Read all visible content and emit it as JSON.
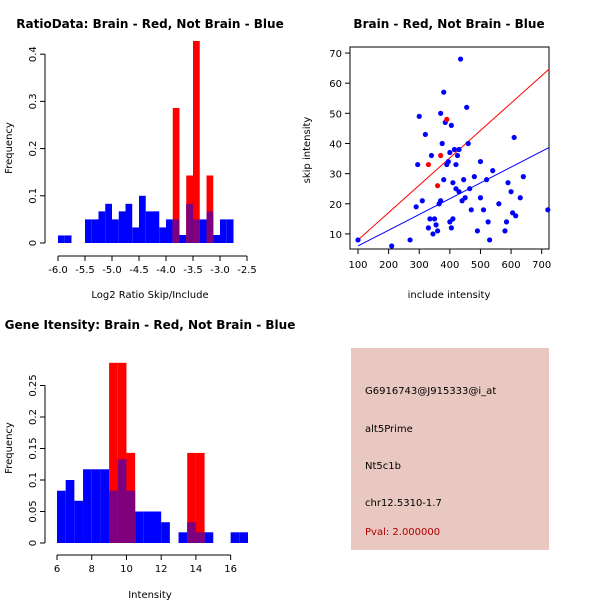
{
  "colors": {
    "brain": "#ff0000",
    "not_brain": "#0000ff",
    "overlap": "#7f007f",
    "info_bg": "#e8c8c0",
    "pval": "#b00000"
  },
  "chart_data": [
    {
      "type": "histogram",
      "title": "RatioData: Brain - Red, Not Brain - Blue",
      "xlabel": "Log2 Ratio Skip/Include",
      "ylabel": "Frequency",
      "xlim": [
        -6.0,
        -2.5
      ],
      "ylim": [
        0,
        0.43
      ],
      "xticks": [
        -6.0,
        -5.5,
        -5.0,
        -4.5,
        -4.0,
        -3.5,
        -3.0,
        -2.5
      ],
      "yticks": [
        0,
        0.1,
        0.2,
        0.3,
        0.4
      ],
      "bin_width": 0.125,
      "series": [
        {
          "name": "Not Brain",
          "color": "blue",
          "bins": [
            [
              -6.0,
              0.016
            ],
            [
              -5.875,
              0.016
            ],
            [
              -5.5,
              0.05
            ],
            [
              -5.375,
              0.05
            ],
            [
              -5.25,
              0.067
            ],
            [
              -5.125,
              0.083
            ],
            [
              -5.0,
              0.05
            ],
            [
              -4.875,
              0.067
            ],
            [
              -4.75,
              0.083
            ],
            [
              -4.625,
              0.033
            ],
            [
              -4.5,
              0.1
            ],
            [
              -4.375,
              0.067
            ],
            [
              -4.25,
              0.067
            ],
            [
              -4.125,
              0.033
            ],
            [
              -4.0,
              0.05
            ],
            [
              -3.875,
              0.05
            ],
            [
              -3.75,
              0.017
            ],
            [
              -3.625,
              0.083
            ],
            [
              -3.5,
              0.05
            ],
            [
              -3.375,
              0.05
            ],
            [
              -3.25,
              0.067
            ],
            [
              -3.125,
              0.017
            ],
            [
              -3.0,
              0.05
            ],
            [
              -2.875,
              0.05
            ]
          ]
        },
        {
          "name": "Brain",
          "color": "red",
          "bins": [
            [
              -3.875,
              0.286
            ],
            [
              -3.625,
              0.143
            ],
            [
              -3.5,
              0.428
            ],
            [
              -3.25,
              0.143
            ]
          ]
        }
      ]
    },
    {
      "type": "scatter",
      "title": "Brain - Red, Not Brain - Blue",
      "xlabel": "include intensity",
      "ylabel": "skip intensity",
      "xlim": [
        100,
        750
      ],
      "ylim": [
        5,
        72
      ],
      "xticks": [
        100,
        200,
        300,
        400,
        500,
        600,
        700
      ],
      "yticks": [
        10,
        20,
        30,
        40,
        50,
        60,
        70
      ],
      "series": [
        {
          "name": "Not Brain",
          "color": "blue",
          "points": [
            [
              100,
              8
            ],
            [
              210,
              6
            ],
            [
              270,
              8
            ],
            [
              290,
              19
            ],
            [
              295,
              33
            ],
            [
              300,
              49
            ],
            [
              310,
              21
            ],
            [
              320,
              43
            ],
            [
              330,
              12
            ],
            [
              335,
              15
            ],
            [
              340,
              36
            ],
            [
              345,
              10
            ],
            [
              350,
              15
            ],
            [
              355,
              13
            ],
            [
              360,
              11
            ],
            [
              365,
              20
            ],
            [
              370,
              21
            ],
            [
              370,
              50
            ],
            [
              375,
              40
            ],
            [
              380,
              57
            ],
            [
              380,
              28
            ],
            [
              385,
              47
            ],
            [
              390,
              33
            ],
            [
              395,
              34
            ],
            [
              400,
              37
            ],
            [
              400,
              14
            ],
            [
              405,
              46
            ],
            [
              405,
              12
            ],
            [
              410,
              15
            ],
            [
              410,
              27
            ],
            [
              415,
              38
            ],
            [
              420,
              33
            ],
            [
              420,
              25
            ],
            [
              425,
              36
            ],
            [
              430,
              38
            ],
            [
              430,
              24
            ],
            [
              435,
              68
            ],
            [
              440,
              21
            ],
            [
              445,
              28
            ],
            [
              450,
              22
            ],
            [
              455,
              52
            ],
            [
              460,
              40
            ],
            [
              465,
              25
            ],
            [
              470,
              18
            ],
            [
              480,
              29
            ],
            [
              490,
              11
            ],
            [
              500,
              34
            ],
            [
              500,
              22
            ],
            [
              510,
              18
            ],
            [
              520,
              28
            ],
            [
              525,
              14
            ],
            [
              530,
              8
            ],
            [
              540,
              31
            ],
            [
              560,
              20
            ],
            [
              580,
              11
            ],
            [
              585,
              14
            ],
            [
              590,
              27
            ],
            [
              600,
              24
            ],
            [
              605,
              17
            ],
            [
              610,
              42
            ],
            [
              615,
              16
            ],
            [
              630,
              22
            ],
            [
              640,
              29
            ],
            [
              720,
              18
            ]
          ]
        },
        {
          "name": "Brain",
          "color": "red",
          "points": [
            [
              330,
              33
            ],
            [
              360,
              26
            ],
            [
              370,
              36
            ],
            [
              390,
              48
            ]
          ]
        }
      ],
      "fit_lines": [
        {
          "color": "red",
          "x": [
            100,
            750
          ],
          "y": [
            8,
            67
          ]
        },
        {
          "color": "blue",
          "x": [
            100,
            750
          ],
          "y": [
            6,
            40
          ]
        }
      ]
    },
    {
      "type": "histogram",
      "title": "Gene Itensity: Brain - Red, Not Brain - Blue",
      "xlabel": "Intensity",
      "ylabel": "Frequency",
      "xlim": [
        6,
        17
      ],
      "ylim": [
        0,
        0.3
      ],
      "xticks": [
        6,
        8,
        10,
        12,
        14,
        16
      ],
      "yticks": [
        0.0,
        0.05,
        0.1,
        0.15,
        0.2,
        0.25
      ],
      "bin_width": 0.5,
      "series": [
        {
          "name": "Not Brain",
          "color": "blue",
          "bins": [
            [
              6.0,
              0.083
            ],
            [
              6.5,
              0.1
            ],
            [
              7.0,
              0.067
            ],
            [
              7.5,
              0.117
            ],
            [
              8.0,
              0.117
            ],
            [
              8.5,
              0.117
            ],
            [
              9.0,
              0.083
            ],
            [
              9.5,
              0.133
            ],
            [
              10.0,
              0.083
            ],
            [
              10.5,
              0.05
            ],
            [
              11.0,
              0.05
            ],
            [
              11.5,
              0.05
            ],
            [
              12.0,
              0.033
            ],
            [
              13.0,
              0.017
            ],
            [
              13.5,
              0.033
            ],
            [
              14.0,
              0.017
            ],
            [
              14.5,
              0.017
            ],
            [
              16.0,
              0.017
            ],
            [
              16.5,
              0.017
            ]
          ]
        },
        {
          "name": "Brain",
          "color": "red",
          "bins": [
            [
              9.0,
              0.286
            ],
            [
              9.5,
              0.286
            ],
            [
              10.0,
              0.143
            ],
            [
              13.5,
              0.143
            ],
            [
              14.0,
              0.143
            ]
          ]
        }
      ]
    }
  ],
  "info_panel": {
    "probe_id": "G6916743@J915333@i_at",
    "event_type": "alt5Prime",
    "gene": "Nt5c1b",
    "location": "chr12.5310-1.7",
    "pval": "Pval: 2.000000"
  }
}
